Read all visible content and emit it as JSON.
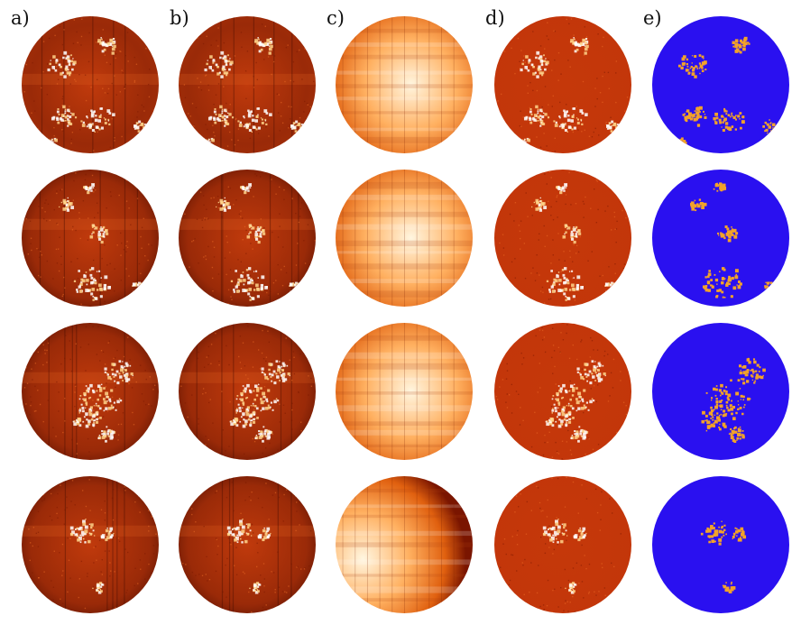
{
  "figure": {
    "column_labels": [
      "a)",
      "b)",
      "c)",
      "d)",
      "e)"
    ],
    "rows": 4,
    "colors": {
      "background": "#ffffff",
      "solar_dark": "#3a0600",
      "solar_mid": "#c43a0a",
      "solar_bright": "#ffd38a",
      "mask_background": "#2a10f0",
      "mask_feature": "#f2a22a"
    }
  }
}
